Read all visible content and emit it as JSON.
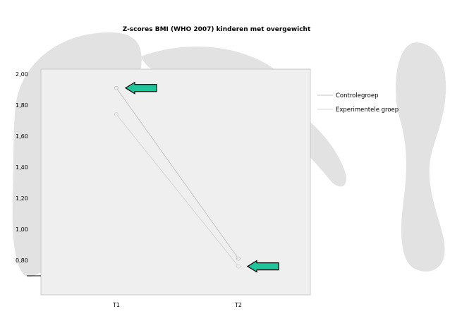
{
  "chart_data": {
    "type": "line",
    "title": "Z-scores BMI  (WHO 2007) kinderen met overgewicht",
    "xlabel": "",
    "ylabel": "",
    "categories": [
      "T1",
      "T2"
    ],
    "y_ticks": [
      "2,00",
      "1,80",
      "1,60",
      "1,40",
      "1,20",
      "1,00",
      "0,80"
    ],
    "ylim": [
      0.74,
      2.0
    ],
    "grid": false,
    "legend_position": "right",
    "series": [
      {
        "name": "Controlegroep",
        "values": [
          1.91,
          0.81
        ]
      },
      {
        "name": "Experimentele groep",
        "values": [
          1.74,
          0.76
        ]
      }
    ],
    "annotations": [
      {
        "type": "arrow",
        "pointing": "left",
        "category": "T1",
        "value": 1.91
      },
      {
        "type": "arrow",
        "pointing": "left",
        "category": "T2",
        "value": 0.76
      }
    ]
  },
  "colors": {
    "figure_background": "#ffffff",
    "plot_background": "#efefef",
    "plot_border": "#c8c8c8",
    "axis_line": "#000000",
    "series_controlegroep": "#c4c4c4",
    "series_experimentele_groep": "#d4d4d4",
    "arrow_fill": "#1fc49b",
    "arrow_stroke": "#000000",
    "watermark": "#e2e2e2",
    "text": "#000000"
  },
  "watermark": {
    "icon": "faded-logo-watermark"
  }
}
